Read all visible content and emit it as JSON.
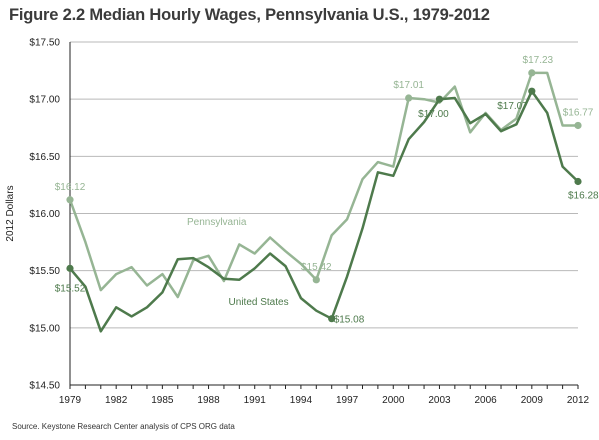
{
  "title": "Figure 2.2 Median Hourly Wages, Pennsylvania U.S., 1979-2012",
  "source": "Source. Keystone Research Center analysis of CPS ORG data",
  "chart_data": {
    "type": "line",
    "ylabel": "2012 Dollars",
    "xlabel": "",
    "xlim": [
      1979,
      2012
    ],
    "ylim": [
      14.5,
      17.5
    ],
    "grid": true,
    "x_ticks": [
      1979,
      1982,
      1985,
      1988,
      1991,
      1994,
      1997,
      2000,
      2003,
      2006,
      2009,
      2012
    ],
    "y_ticks": [
      14.5,
      15.0,
      15.5,
      16.0,
      16.5,
      17.0,
      17.5
    ],
    "y_tick_labels": [
      "$14.50",
      "$15.00",
      "$15.50",
      "$16.00",
      "$16.50",
      "$17.00",
      "$17.50"
    ],
    "x": [
      1979,
      1980,
      1981,
      1982,
      1983,
      1984,
      1985,
      1986,
      1987,
      1988,
      1989,
      1990,
      1991,
      1992,
      1993,
      1994,
      1995,
      1996,
      1997,
      1998,
      1999,
      2000,
      2001,
      2002,
      2003,
      2004,
      2005,
      2006,
      2007,
      2008,
      2009,
      2010,
      2011,
      2012
    ],
    "series": [
      {
        "name": "Pennsylvania",
        "color": "#96b594",
        "values": [
          16.12,
          15.75,
          15.33,
          15.47,
          15.53,
          15.37,
          15.47,
          15.27,
          15.59,
          15.63,
          15.41,
          15.73,
          15.65,
          15.79,
          15.67,
          15.56,
          15.42,
          15.81,
          15.95,
          16.3,
          16.45,
          16.41,
          17.01,
          17.0,
          16.97,
          17.11,
          16.71,
          16.88,
          16.73,
          16.83,
          17.23,
          17.23,
          16.77,
          16.77
        ],
        "markers": [
          {
            "x": 1979,
            "label": "$16.12"
          },
          {
            "x": 1995,
            "label": "$15.42"
          },
          {
            "x": 2001,
            "label": "$17.01"
          },
          {
            "x": 2009,
            "label": "$17.23"
          },
          {
            "x": 2012,
            "label": "$16.77"
          }
        ]
      },
      {
        "name": "United States",
        "color": "#4e7a4c",
        "values": [
          15.52,
          15.36,
          14.97,
          15.18,
          15.1,
          15.18,
          15.31,
          15.6,
          15.61,
          15.53,
          15.43,
          15.42,
          15.52,
          15.65,
          15.54,
          15.26,
          15.15,
          15.08,
          15.45,
          15.87,
          16.36,
          16.33,
          16.65,
          16.8,
          17.0,
          17.01,
          16.79,
          16.87,
          16.72,
          16.78,
          17.07,
          16.88,
          16.41,
          16.28
        ],
        "markers": [
          {
            "x": 1979,
            "label": "$15.52"
          },
          {
            "x": 1996,
            "label": "$15.08"
          },
          {
            "x": 2003,
            "label": "$17.00"
          },
          {
            "x": 2009,
            "label": "$17.07"
          },
          {
            "x": 2012,
            "label": "$16.28"
          }
        ]
      }
    ]
  }
}
